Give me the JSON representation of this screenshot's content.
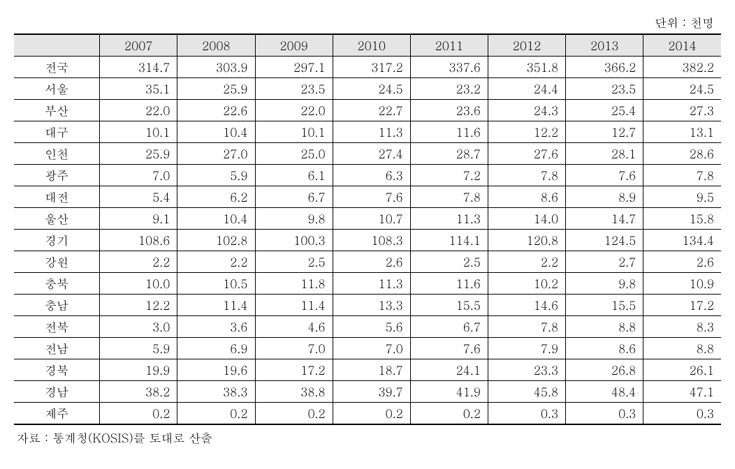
{
  "unit_label": "단위 : 천명",
  "source_note": "자료 : 통계청(KOSIS)를 토대로 산출",
  "table": {
    "type": "table",
    "header_bg_color": "#e5e5e5",
    "border_color": "#000000",
    "font_size": 17,
    "columns": [
      "",
      "2007",
      "2008",
      "2009",
      "2010",
      "2011",
      "2012",
      "2013",
      "2014"
    ],
    "rows": [
      [
        "전국",
        "314.7",
        "303.9",
        "297.1",
        "317.2",
        "337.6",
        "351.8",
        "366.2",
        "382.2"
      ],
      [
        "서울",
        "35.1",
        "25.9",
        "23.5",
        "24.5",
        "23.2",
        "24.4",
        "23.5",
        "24.5"
      ],
      [
        "부산",
        "22.0",
        "22.6",
        "22.0",
        "22.7",
        "23.6",
        "24.3",
        "25.4",
        "27.3"
      ],
      [
        "대구",
        "10.1",
        "10.4",
        "10.1",
        "11.3",
        "11.6",
        "12.2",
        "12.7",
        "13.1"
      ],
      [
        "인천",
        "25.9",
        "27.0",
        "25.0",
        "27.4",
        "28.7",
        "27.6",
        "28.1",
        "28.6"
      ],
      [
        "광주",
        "7.0",
        "5.9",
        "6.1",
        "6.3",
        "7.2",
        "7.8",
        "7.6",
        "7.8"
      ],
      [
        "대전",
        "5.4",
        "6.2",
        "6.7",
        "7.6",
        "7.8",
        "8.6",
        "8.9",
        "9.5"
      ],
      [
        "울산",
        "9.1",
        "10.4",
        "9.8",
        "10.7",
        "11.3",
        "14.0",
        "14.7",
        "15.8"
      ],
      [
        "경기",
        "108.6",
        "102.8",
        "100.3",
        "108.3",
        "114.1",
        "120.8",
        "124.5",
        "134.4"
      ],
      [
        "강원",
        "2.2",
        "2.2",
        "2.5",
        "2.6",
        "2.5",
        "2.2",
        "2.7",
        "2.6"
      ],
      [
        "충북",
        "10.0",
        "10.5",
        "11.8",
        "11.3",
        "11.6",
        "10.2",
        "9.8",
        "10.9"
      ],
      [
        "충남",
        "12.2",
        "11.4",
        "11.4",
        "13.3",
        "15.5",
        "14.6",
        "15.5",
        "17.2"
      ],
      [
        "전북",
        "3.0",
        "3.6",
        "4.6",
        "5.6",
        "6.7",
        "7.8",
        "8.8",
        "8.3"
      ],
      [
        "전남",
        "5.9",
        "6.9",
        "7.0",
        "7.0",
        "7.6",
        "7.9",
        "8.6",
        "8.8"
      ],
      [
        "경북",
        "19.9",
        "19.6",
        "17.2",
        "18.7",
        "24.1",
        "23.3",
        "26.8",
        "26.1"
      ],
      [
        "경남",
        "38.2",
        "38.3",
        "38.8",
        "39.7",
        "41.9",
        "45.8",
        "48.4",
        "47.1"
      ],
      [
        "제주",
        "0.2",
        "0.2",
        "0.2",
        "0.2",
        "0.2",
        "0.3",
        "0.3",
        "0.3"
      ]
    ]
  }
}
